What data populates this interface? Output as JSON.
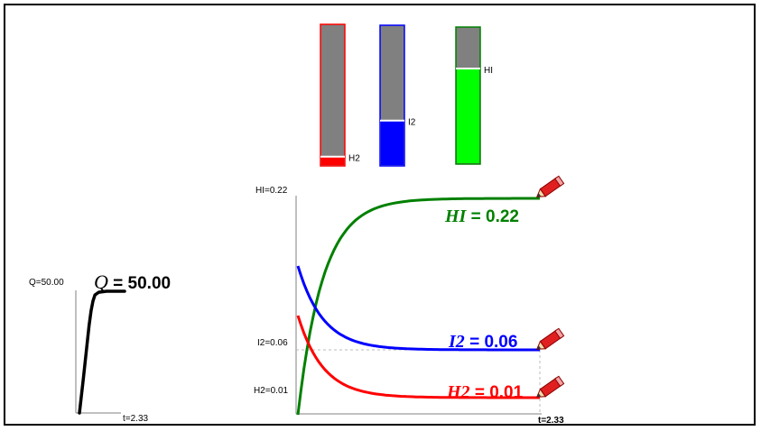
{
  "colors": {
    "h2": "#ff0000",
    "i2": "#0000ff",
    "hi": "#008000",
    "hi_fill": "#00ff00",
    "gray": "#808080",
    "q": "#000000"
  },
  "bars": [
    {
      "name": "h2",
      "label": "H2",
      "level": 0.06
    },
    {
      "name": "i2",
      "label": "I2",
      "level": 0.32
    },
    {
      "name": "hi",
      "label": "HI",
      "level": 0.7
    }
  ],
  "q_panel": {
    "y_label": "Q=50.00",
    "x_label": "t=2.33",
    "symbol": "Q",
    "value_text": " = 50.00",
    "curve_t": [
      0,
      0.2,
      0.35,
      0.5,
      0.6,
      0.7,
      0.8,
      1.0,
      1.4,
      2.33
    ],
    "curve_q": [
      0,
      14,
      25,
      36,
      42,
      46,
      48.5,
      49.6,
      50,
      50
    ]
  },
  "conc_chart": {
    "y_labels": {
      "hi": "HI=0.22",
      "i2": "I2=0.06",
      "h2": "H2=0.01"
    },
    "x_label": "t=2.33",
    "t_max": 2.33,
    "series": [
      {
        "key": "hi",
        "symbol": "HI",
        "value_text": " = 0.22",
        "start": 0.0,
        "end": 0.22,
        "k": 6
      },
      {
        "key": "i2",
        "symbol": "I2",
        "value_text": " = 0.06",
        "start": 0.17,
        "end": 0.06,
        "k": 6
      },
      {
        "key": "h2",
        "symbol": "H2",
        "value_text": " = 0.01",
        "start": 0.12,
        "end": 0.01,
        "k": 6
      }
    ]
  }
}
